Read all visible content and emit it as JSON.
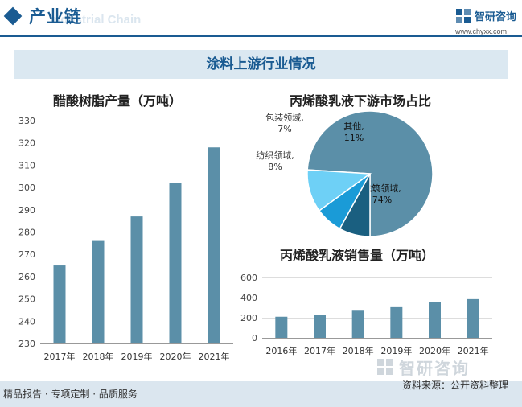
{
  "header": {
    "title": "产业链",
    "watermark": "Industrial Chain"
  },
  "logo": {
    "name": "智研咨询",
    "url": "www.chyxx.com"
  },
  "banner": {
    "title": "涂料上游行业情况"
  },
  "colors": {
    "bar": "#5b8fa8",
    "brand": "#1a5b92",
    "pie": [
      "#5b8fa8",
      "#1a5f80",
      "#1a9bd7",
      "#6ed0f6"
    ]
  },
  "chart_data": [
    {
      "type": "bar",
      "title": "醋酸树脂产量（万吨）",
      "categories": [
        "2017年",
        "2018年",
        "2019年",
        "2020年",
        "2021年"
      ],
      "values": [
        265,
        276,
        287,
        302,
        318
      ],
      "ylim": [
        230,
        330
      ],
      "yticks": [
        "230",
        "240",
        "250",
        "260",
        "270",
        "280",
        "290",
        "300",
        "310",
        "320",
        "330"
      ],
      "grid": false
    },
    {
      "type": "pie",
      "title": "丙烯酸乳液下游市场占比",
      "slices": [
        {
          "label": "建筑领域,",
          "value": 74,
          "value_label": "74%"
        },
        {
          "label": "纺织领域,",
          "value": 8,
          "value_label": "8%"
        },
        {
          "label": "包装领域,",
          "value": 7,
          "value_label": "7%"
        },
        {
          "label": "其他,",
          "value": 11,
          "value_label": "11%"
        }
      ]
    },
    {
      "type": "bar",
      "title": "丙烯酸乳液销售量（万吨）",
      "categories": [
        "2016年",
        "2017年",
        "2018年",
        "2019年",
        "2020年",
        "2021年"
      ],
      "values": [
        210,
        225,
        270,
        305,
        360,
        385
      ],
      "ylim": [
        0,
        600
      ],
      "yticks": [
        "0",
        "200",
        "400",
        "600"
      ],
      "grid": true
    }
  ],
  "footer": {
    "left": "精品报告 · 专项定制 · 品质服务",
    "source": "资料来源：公开资料整理",
    "logo": "智研咨询"
  }
}
